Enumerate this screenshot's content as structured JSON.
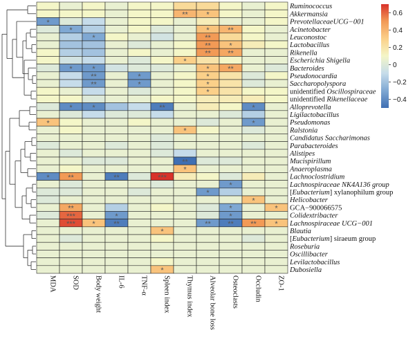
{
  "chart_data": {
    "type": "heatmap",
    "columns": [
      "MDA",
      "SOD",
      "Body weight",
      "IL-6",
      "TNF-α",
      "Spleen index",
      "Thymus index",
      "Alveolar bone loss",
      "Osteoclasts",
      "Occludin",
      "ZO-1"
    ],
    "rows": [
      {
        "name": "Ruminococcus",
        "italic": true
      },
      {
        "name": "Akkermansia",
        "italic": true
      },
      {
        "name": "PrevotellaceaeUCG−001",
        "italic": true
      },
      {
        "name": "Acinetobacter",
        "italic": true
      },
      {
        "name": "Leuconostoc",
        "italic": true
      },
      {
        "name": "Lactobacillus",
        "italic": true
      },
      {
        "name": "Rikenella",
        "italic": true
      },
      {
        "name": "Escherichia Shigella",
        "italic": true
      },
      {
        "name": "Bacteroides",
        "italic": true
      },
      {
        "name": "Pseudonocardia",
        "italic": true
      },
      {
        "name": "Saccharopolyspora",
        "italic": true
      },
      {
        "name": "unidentified Oscillospiraceae",
        "prefix": "unidentified ",
        "main": "Oscillospiraceae",
        "italic": true
      },
      {
        "name": "unidentified Rikenellaceae",
        "prefix": "unidentified ",
        "main": "Rikenellaceae",
        "italic": true
      },
      {
        "name": "Alloprevotella",
        "italic": true
      },
      {
        "name": "Ligilactobacillus",
        "italic": true
      },
      {
        "name": "Pseudomonas",
        "italic": true
      },
      {
        "name": "Ralstonia",
        "italic": true
      },
      {
        "name": "Candidatus Saccharimonas",
        "italic": true
      },
      {
        "name": "Parabacteroides",
        "italic": true
      },
      {
        "name": "Alistipes",
        "italic": true
      },
      {
        "name": "Mucispirillum",
        "italic": true
      },
      {
        "name": "Anaeroplasma",
        "italic": true
      },
      {
        "name": "Lachnoclostridium",
        "italic": true
      },
      {
        "name": "Lachnospiraceae NK4A136 group",
        "italic": true
      },
      {
        "name": "[Eubacterium] xylanophilum group",
        "prefix": "[",
        "main": "Eubacterium",
        "suffix": "] xylanophilum group",
        "italic": true
      },
      {
        "name": "Helicobacter",
        "italic": true
      },
      {
        "name": "GCA−900066575",
        "italic": false
      },
      {
        "name": "Colidextribacter",
        "italic": true
      },
      {
        "name": "Lachnospiraceae UCG−001",
        "italic": true
      },
      {
        "name": "Blautia",
        "italic": true
      },
      {
        "name": "[Eubacterium] siraeum group",
        "prefix": "[",
        "main": "Eubacterium",
        "suffix": "] siraeum group",
        "italic": true
      },
      {
        "name": "Roseburia",
        "italic": true
      },
      {
        "name": "Oscillibacter",
        "italic": true
      },
      {
        "name": "Levilactobacillus",
        "italic": true
      },
      {
        "name": "Dubosiella",
        "italic": true
      }
    ],
    "values": [
      [
        0.1,
        0.05,
        0.1,
        0.05,
        0.1,
        0.1,
        0.25,
        0.25,
        0.1,
        0.05,
        0.1
      ],
      [
        0.1,
        0.1,
        0.1,
        0.05,
        0.1,
        0.1,
        0.4,
        0.35,
        0.1,
        0.05,
        0.1
      ],
      [
        -0.35,
        0.0,
        -0.1,
        0.05,
        0.1,
        0.1,
        0.05,
        0.15,
        0.05,
        0.05,
        0.1
      ],
      [
        0.0,
        -0.3,
        -0.15,
        0.05,
        0.1,
        0.0,
        0.05,
        0.35,
        0.4,
        0.1,
        0.05
      ],
      [
        0.05,
        -0.15,
        -0.3,
        0.1,
        0.05,
        -0.05,
        0.05,
        0.5,
        0.25,
        0.1,
        0.05
      ],
      [
        0.05,
        -0.2,
        -0.2,
        0.05,
        0.0,
        0.05,
        0.1,
        0.5,
        0.35,
        0.15,
        0.1
      ],
      [
        0.1,
        -0.15,
        -0.2,
        0.05,
        0.1,
        0.05,
        0.1,
        0.5,
        0.45,
        0.05,
        0.05
      ],
      [
        0.1,
        -0.05,
        -0.1,
        0.05,
        0.0,
        0.1,
        0.3,
        0.2,
        0.1,
        0.05,
        0.05
      ],
      [
        0.0,
        -0.35,
        -0.35,
        -0.05,
        0.0,
        0.0,
        0.05,
        0.35,
        0.45,
        0.05,
        0.0
      ],
      [
        0.05,
        -0.1,
        -0.35,
        0.05,
        -0.35,
        0.05,
        0.1,
        0.3,
        0.2,
        0.0,
        0.1
      ],
      [
        0.05,
        -0.1,
        -0.35,
        0.05,
        -0.35,
        0.05,
        0.1,
        0.3,
        0.2,
        0.0,
        0.05
      ],
      [
        0.1,
        0.05,
        -0.1,
        0.05,
        0.0,
        0.05,
        0.1,
        0.3,
        0.2,
        0.1,
        0.1
      ],
      [
        0.1,
        0.1,
        0.0,
        0.05,
        0.05,
        0.1,
        0.1,
        0.15,
        0.15,
        0.15,
        0.1
      ],
      [
        0.0,
        -0.4,
        -0.4,
        -0.2,
        -0.1,
        -0.45,
        0.05,
        0.15,
        0.1,
        -0.4,
        0.05
      ],
      [
        0.05,
        0.0,
        -0.1,
        0.0,
        0.0,
        -0.1,
        0.05,
        0.05,
        0.0,
        -0.15,
        0.05
      ],
      [
        0.35,
        0.1,
        0.05,
        0.05,
        0.1,
        0.05,
        0.05,
        0.0,
        0.05,
        -0.35,
        0.05
      ],
      [
        0.05,
        0.1,
        0.05,
        0.05,
        0.05,
        0.05,
        0.35,
        0.1,
        0.05,
        0.0,
        0.05
      ],
      [
        0.05,
        0.05,
        0.05,
        0.05,
        0.05,
        0.0,
        0.05,
        0.05,
        0.05,
        0.05,
        0.05
      ],
      [
        0.0,
        0.05,
        0.05,
        0.0,
        0.05,
        0.0,
        0.05,
        0.05,
        0.05,
        0.0,
        0.05
      ],
      [
        0.05,
        0.0,
        0.05,
        0.05,
        0.05,
        0.0,
        -0.1,
        0.05,
        0.05,
        0.05,
        0.05
      ],
      [
        0.05,
        0.05,
        0.0,
        0.0,
        0.05,
        0.05,
        -0.5,
        0.0,
        0.0,
        0.05,
        0.05
      ],
      [
        0.05,
        0.1,
        0.05,
        0.05,
        0.05,
        0.05,
        0.35,
        0.05,
        0.05,
        0.05,
        0.05
      ],
      [
        -0.4,
        0.5,
        0.05,
        -0.45,
        0.0,
        0.7,
        0.15,
        0.1,
        0.0,
        0.15,
        0.05
      ],
      [
        0.05,
        0.0,
        0.05,
        0.05,
        0.05,
        0.0,
        0.05,
        0.05,
        -0.35,
        0.05,
        0.05
      ],
      [
        0.0,
        0.0,
        0.05,
        0.05,
        0.0,
        0.05,
        0.05,
        -0.35,
        -0.15,
        0.05,
        0.05
      ],
      [
        0.0,
        0.05,
        0.05,
        0.05,
        0.05,
        0.05,
        0.05,
        0.05,
        0.05,
        0.35,
        0.05
      ],
      [
        0.05,
        0.45,
        0.05,
        -0.15,
        0.05,
        0.1,
        0.05,
        0.0,
        -0.3,
        0.05,
        0.35
      ],
      [
        0.0,
        0.6,
        0.05,
        -0.35,
        0.05,
        0.05,
        0.05,
        0.0,
        -0.35,
        0.05,
        0.05
      ],
      [
        0.05,
        0.65,
        0.35,
        -0.45,
        0.05,
        0.05,
        0.05,
        -0.35,
        -0.45,
        0.5,
        0.35
      ],
      [
        0.05,
        0.05,
        0.05,
        0.05,
        0.05,
        0.35,
        0.05,
        0.05,
        0.05,
        0.05,
        0.05
      ],
      [
        0.05,
        0.0,
        0.05,
        0.05,
        0.05,
        0.1,
        0.05,
        0.05,
        0.05,
        0.0,
        0.05
      ],
      [
        0.05,
        0.05,
        0.05,
        0.05,
        0.05,
        0.05,
        0.05,
        0.05,
        0.05,
        0.05,
        0.05
      ],
      [
        0.05,
        0.05,
        0.05,
        0.05,
        0.05,
        0.05,
        0.05,
        0.05,
        0.05,
        0.05,
        0.05
      ],
      [
        0.05,
        0.05,
        0.05,
        0.05,
        0.05,
        0.1,
        0.05,
        0.05,
        0.05,
        0.05,
        0.05
      ],
      [
        0.05,
        0.05,
        0.05,
        0.05,
        0.05,
        0.35,
        0.05,
        0.05,
        0.05,
        0.05,
        0.05
      ]
    ],
    "significance": [
      [
        "",
        "",
        "",
        "",
        "",
        "",
        "",
        "",
        "",
        "",
        ""
      ],
      [
        "",
        "",
        "",
        "",
        "",
        "",
        "**",
        "*",
        "",
        "",
        ""
      ],
      [
        "*",
        "",
        "",
        "",
        "",
        "",
        "",
        "",
        "",
        "",
        ""
      ],
      [
        "",
        "*",
        "",
        "",
        "",
        "",
        "",
        "*",
        "**",
        "",
        ""
      ],
      [
        "",
        "",
        "*",
        "",
        "",
        "",
        "",
        "**",
        "",
        "",
        ""
      ],
      [
        "",
        "",
        "",
        "",
        "",
        "",
        "",
        "**",
        "*",
        "",
        ""
      ],
      [
        "",
        "",
        "",
        "",
        "",
        "",
        "",
        "**",
        "**",
        "",
        ""
      ],
      [
        "",
        "",
        "",
        "",
        "",
        "",
        "*",
        "",
        "",
        "",
        ""
      ],
      [
        "",
        "*",
        "*",
        "",
        "",
        "",
        "",
        "*",
        "**",
        "",
        ""
      ],
      [
        "",
        "",
        "**",
        "",
        "*",
        "",
        "",
        "*",
        "",
        "",
        ""
      ],
      [
        "",
        "",
        "**",
        "",
        "*",
        "",
        "",
        "*",
        "",
        "",
        ""
      ],
      [
        "",
        "",
        "",
        "",
        "",
        "",
        "",
        "*",
        "",
        "",
        ""
      ],
      [
        "",
        "",
        "",
        "",
        "",
        "",
        "",
        "",
        "",
        "",
        ""
      ],
      [
        "",
        "*",
        "*",
        "",
        "",
        "**",
        "",
        "",
        "",
        "*",
        ""
      ],
      [
        "",
        "",
        "",
        "",
        "",
        "",
        "",
        "",
        "",
        "",
        ""
      ],
      [
        "*",
        "",
        "",
        "",
        "",
        "",
        "",
        "",
        "",
        "*",
        ""
      ],
      [
        "",
        "",
        "",
        "",
        "",
        "",
        "*",
        "",
        "",
        "",
        ""
      ],
      [
        "",
        "",
        "",
        "",
        "",
        "",
        "",
        "",
        "",
        "",
        ""
      ],
      [
        "",
        "",
        "",
        "",
        "",
        "",
        "",
        "",
        "",
        "",
        ""
      ],
      [
        "",
        "",
        "",
        "",
        "",
        "",
        "",
        "",
        "",
        "",
        ""
      ],
      [
        "",
        "",
        "",
        "",
        "",
        "",
        "**",
        "",
        "",
        "",
        ""
      ],
      [
        "",
        "",
        "",
        "",
        "",
        "",
        "*",
        "",
        "",
        "",
        ""
      ],
      [
        "*",
        "**",
        "",
        "**",
        "",
        "***",
        "",
        "",
        "",
        "",
        ""
      ],
      [
        "",
        "",
        "",
        "",
        "",
        "",
        "",
        "",
        "*",
        "",
        ""
      ],
      [
        "",
        "",
        "",
        "",
        "",
        "",
        "",
        "*",
        "",
        "",
        ""
      ],
      [
        "",
        "",
        "",
        "",
        "",
        "",
        "",
        "",
        "",
        "*",
        ""
      ],
      [
        "",
        "**",
        "",
        "",
        "",
        "",
        "",
        "",
        "*",
        "",
        "*"
      ],
      [
        "",
        "***",
        "",
        "*",
        "",
        "",
        "",
        "",
        "*",
        "",
        ""
      ],
      [
        "",
        "***",
        "*",
        "**",
        "",
        "",
        "",
        "**",
        "**",
        "**",
        "*"
      ],
      [
        "",
        "",
        "",
        "",
        "",
        "*",
        "",
        "",
        "",
        "",
        ""
      ],
      [
        "",
        "",
        "",
        "",
        "",
        "",
        "",
        "",
        "",
        "",
        ""
      ],
      [
        "",
        "",
        "",
        "",
        "",
        "",
        "",
        "",
        "",
        "",
        ""
      ],
      [
        "",
        "",
        "",
        "",
        "",
        "",
        "",
        "",
        "",
        "",
        ""
      ],
      [
        "",
        "",
        "",
        "",
        "",
        "",
        "",
        "",
        "",
        "",
        ""
      ],
      [
        "",
        "",
        "",
        "",
        "",
        "*",
        "",
        "",
        "",
        "",
        ""
      ]
    ],
    "colorbar": {
      "min": -0.5,
      "max": 0.7,
      "ticks": [
        0.6,
        0.4,
        0.2,
        0,
        -0.2,
        -0.4
      ],
      "tick_labels": [
        "0.6",
        "0.4",
        "0.2",
        "0",
        "−0.2",
        "−0.4"
      ],
      "colors": [
        "#3f6fb3",
        "#7fa8d3",
        "#c6dcea",
        "#f4f6c8",
        "#fbd089",
        "#f29a56",
        "#d8322a"
      ]
    },
    "dendrogram": "row-clustering tree on left side",
    "title": "",
    "xlabel": "",
    "ylabel": ""
  }
}
